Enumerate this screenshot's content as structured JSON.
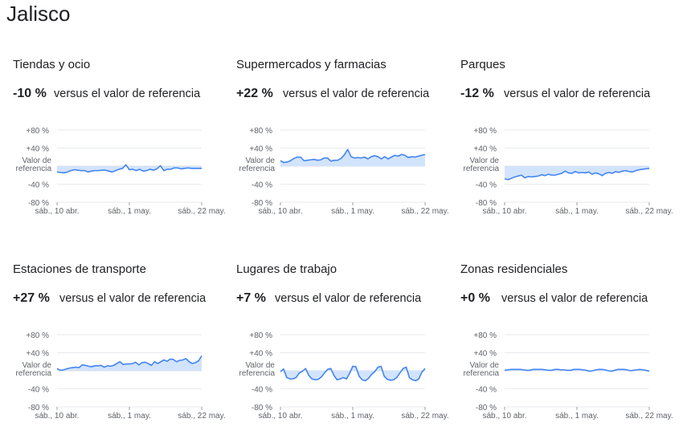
{
  "page": {
    "title": "Jalisco"
  },
  "ref_suffix": "versus el valor de referencia",
  "chart_data": [
    {
      "type": "area",
      "title": "Tiendas y ocio",
      "change": "-10 %",
      "y_ticks": [
        "+80 %",
        "+40 %",
        "Valor de referencia",
        "-40 %",
        "-80 %"
      ],
      "x_ticks": [
        "sáb., 10 abr.",
        "sáb., 1 may.",
        "sáb., 22 may."
      ],
      "ylim": [
        -80,
        80
      ],
      "baseline": 0,
      "color": "#4285f4",
      "fill": "#d2e3fc",
      "values": [
        -13,
        -14,
        -15,
        -13,
        -10,
        -8,
        -9,
        -10,
        -10,
        -13,
        -11,
        -10,
        -10,
        -9,
        -9,
        -11,
        -13,
        -10,
        -7,
        -5,
        3,
        -8,
        -7,
        -10,
        -7,
        -11,
        -10,
        -7,
        -9,
        -6,
        1,
        -10,
        -7,
        -7,
        -4,
        -4,
        -6,
        -5,
        -4,
        -5,
        -5,
        -5,
        -5
      ]
    },
    {
      "type": "area",
      "title": "Supermercados y farmacias",
      "change": "+22 %",
      "y_ticks": [
        "+80 %",
        "+40 %",
        "Valor de referencia",
        "-40 %",
        "-80 %"
      ],
      "x_ticks": [
        "sáb., 10 abr.",
        "sáb., 1 may.",
        "sáb., 22 may."
      ],
      "ylim": [
        -80,
        80
      ],
      "baseline": 0,
      "color": "#4285f4",
      "fill": "#d2e3fc",
      "values": [
        12,
        8,
        9,
        12,
        17,
        20,
        20,
        12,
        13,
        14,
        15,
        13,
        14,
        18,
        18,
        11,
        13,
        13,
        17,
        25,
        37,
        21,
        18,
        19,
        18,
        20,
        16,
        21,
        23,
        21,
        16,
        21,
        16,
        20,
        24,
        22,
        26,
        24,
        19,
        21,
        20,
        22,
        24,
        26
      ]
    },
    {
      "type": "area",
      "title": "Parques",
      "change": "-12 %",
      "y_ticks": [
        "+80 %",
        "+40 %",
        "Valor de referencia",
        "-40 %",
        "-80 %"
      ],
      "x_ticks": [
        "sáb., 10 abr.",
        "sáb., 1 may.",
        "sáb., 22 may."
      ],
      "ylim": [
        -80,
        80
      ],
      "baseline": 0,
      "color": "#4285f4",
      "fill": "#d2e3fc",
      "values": [
        -28,
        -30,
        -27,
        -24,
        -22,
        -20,
        -26,
        -23,
        -24,
        -23,
        -22,
        -19,
        -21,
        -18,
        -20,
        -20,
        -18,
        -16,
        -11,
        -15,
        -16,
        -12,
        -15,
        -14,
        -15,
        -13,
        -18,
        -15,
        -17,
        -21,
        -16,
        -14,
        -16,
        -12,
        -14,
        -11,
        -10,
        -12,
        -13,
        -10,
        -8,
        -7,
        -6,
        -5
      ]
    },
    {
      "type": "area",
      "title": "Estaciones de transporte",
      "change": "+27 %",
      "y_ticks": [
        "+80 %",
        "+40 %",
        "Valor de referencia",
        "-40 %",
        "-80 %"
      ],
      "x_ticks": [
        "sáb., 10 abr.",
        "sáb., 1 may.",
        "sáb., 22 may."
      ],
      "ylim": [
        -80,
        80
      ],
      "baseline": 0,
      "color": "#4285f4",
      "fill": "#d2e3fc",
      "values": [
        5,
        1,
        2,
        4,
        6,
        7,
        8,
        7,
        13,
        12,
        10,
        9,
        11,
        11,
        12,
        8,
        11,
        10,
        12,
        16,
        20,
        14,
        15,
        15,
        16,
        19,
        13,
        18,
        19,
        16,
        12,
        20,
        16,
        20,
        24,
        21,
        26,
        25,
        20,
        23,
        24,
        27,
        20,
        16,
        18,
        22,
        33
      ]
    },
    {
      "type": "area",
      "title": "Lugares de trabajo",
      "change": "+7 %",
      "y_ticks": [
        "+80 %",
        "+40 %",
        "Valor de referencia",
        "-40 %",
        "-80 %"
      ],
      "x_ticks": [
        "sáb., 10 abr.",
        "sáb., 1 may.",
        "sáb., 22 may."
      ],
      "ylim": [
        -80,
        80
      ],
      "baseline": 0,
      "color": "#4285f4",
      "fill": "#d2e3fc",
      "values": [
        -2,
        4,
        -15,
        -18,
        -18,
        -15,
        -5,
        -1,
        5,
        -10,
        -18,
        -20,
        -19,
        -14,
        -5,
        3,
        5,
        -10,
        -20,
        -18,
        -15,
        -18,
        -6,
        10,
        9,
        -12,
        -20,
        -22,
        -17,
        -8,
        -2,
        8,
        10,
        -12,
        -19,
        -21,
        -20,
        -15,
        -5,
        5,
        8,
        -15,
        -20,
        -22,
        -18,
        -3,
        5
      ]
    },
    {
      "type": "area",
      "title": "Zonas residenciales",
      "change": "+0 %",
      "y_ticks": [
        "+80 %",
        "+40 %",
        "Valor de referencia",
        "-40 %",
        "-80 %"
      ],
      "x_ticks": [
        "sáb., 10 abr.",
        "sáb., 1 may.",
        "sáb., 22 may."
      ],
      "ylim": [
        -80,
        80
      ],
      "baseline": 0,
      "color": "#4285f4",
      "fill": "#d2e3fc",
      "values": [
        1,
        2,
        3,
        3,
        3,
        3,
        2,
        1,
        1,
        3,
        3,
        3,
        3,
        2,
        1,
        1,
        3,
        3,
        2,
        2,
        1,
        1,
        3,
        3,
        3,
        2,
        1,
        -1,
        0,
        2,
        3,
        3,
        2,
        0,
        -1,
        1,
        3,
        3,
        3,
        2,
        0,
        1,
        2,
        3,
        2,
        1,
        -1
      ]
    }
  ]
}
